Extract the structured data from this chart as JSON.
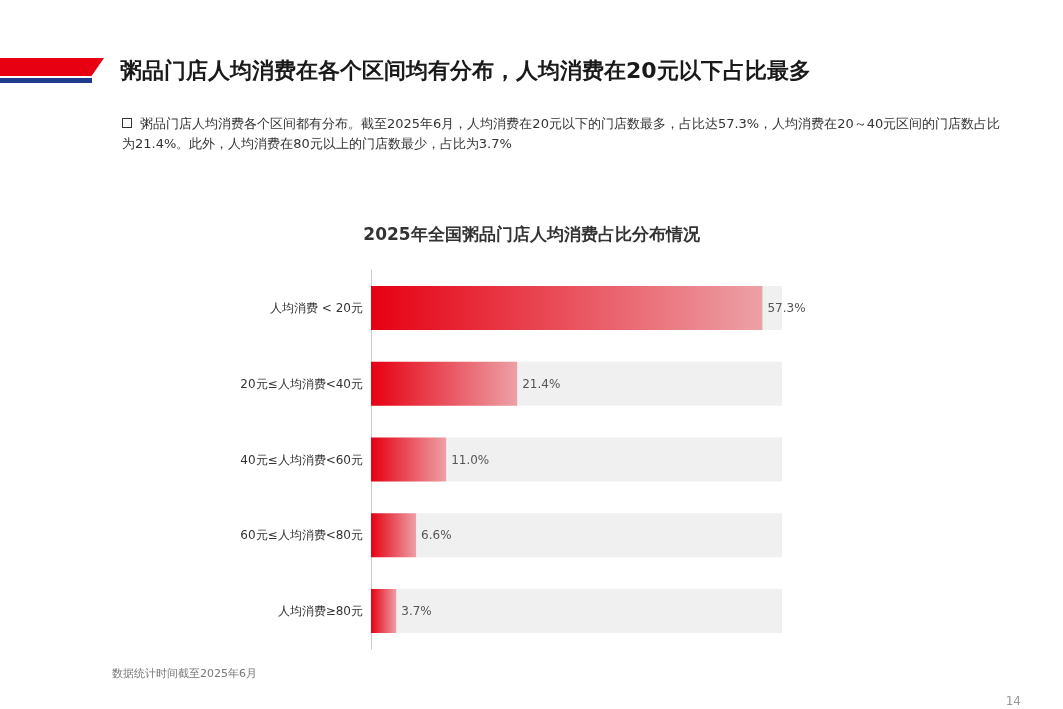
{
  "chart_data": {
    "type": "bar",
    "orientation": "horizontal",
    "title": "2025年全国粥品门店人均消费占比分布情况",
    "subtitle": "粥品门店人均消费各个区间都有分布。截至2025年6月，人均消费在20元以下的门店数最多，占比达57.3%，人均消费在20～40元区间的门店数占比为21.4%。此外，人均消费在80元以上的门店数最少，占比为3.7%",
    "annotations": [
      "粥品门店人均消费在各个区间均有分布，人均消费在20元以下占比最多",
      "数据统计时间截至2025年6月",
      "14"
    ],
    "categories": [
      "人均消费 < 20元",
      "20元≤人均消费<40元",
      "40元≤人均消费<60元",
      "60元≤人均消费<80元",
      "人均消费≥80元"
    ],
    "values": [
      57.3,
      21.4,
      11.0,
      6.6,
      3.7
    ],
    "value_labels": [
      "57.3%",
      "21.4%",
      "11.0%",
      "6.6%",
      "3.7%"
    ],
    "color": "#e60012"
  }
}
